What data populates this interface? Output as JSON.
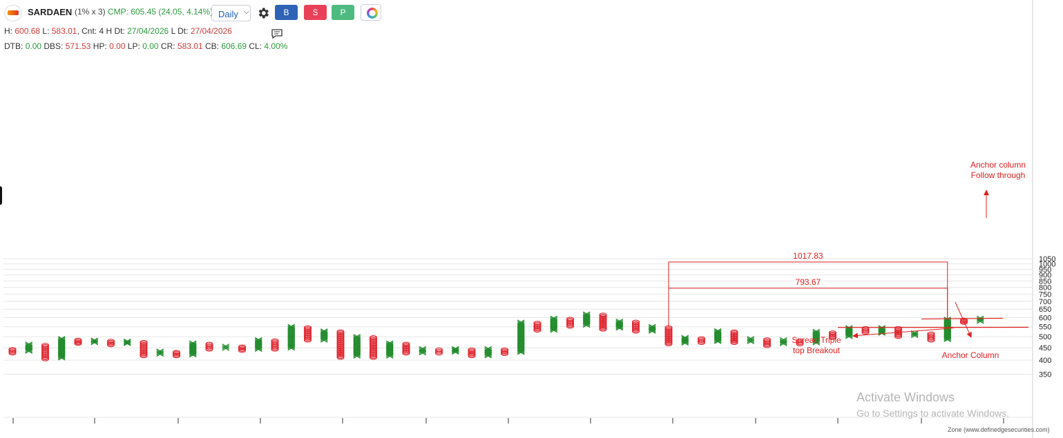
{
  "toolbar": {
    "symbol": "SARDAEN",
    "box_size": "(1% x 3)",
    "cmp": "CMP: 605.45 (24.05, 4.14%)",
    "timeframe": "Daily",
    "buy_label": "B",
    "sell_label": "S",
    "p_label": "P"
  },
  "info": {
    "h_label": "H:",
    "h_value": "600.68",
    "l_label": "L:",
    "l_value": "583.01",
    "cnt": ", Cnt: 4 H Dt:",
    "h_date": "27/04/2026",
    "l_dt_label": "L Dt:",
    "l_date": "27/04/2026",
    "dtb_label": "DTB:",
    "dtb_value": "0.00",
    "dbs_label": "DBS:",
    "dbs_value": "571.53",
    "hp_label": "HP:",
    "hp_value": "0.00",
    "lp_label": "LP:",
    "lp_value": "0.00",
    "cr_label": "CR:",
    "cr_value": "583.01",
    "cb_label": "CB:",
    "cb_value": "606.69",
    "cl_label": "CL:",
    "cl_value": "4.00%"
  },
  "watermark": {
    "line1": "Activate Windows",
    "line2": "Go to Settings to activate Windows."
  },
  "footer": "Zone (www.definedgesecurities.com)",
  "colors": {
    "x_box": "#1f8a2a",
    "o_box": "#e0252f",
    "annotation": "#e02020",
    "grid": "#e6e6e6"
  },
  "chart_data": {
    "type": "point-and-figure",
    "box_size_pct": 1,
    "reversal": 3,
    "y_scale": "log",
    "ylim": [
      340,
      1080
    ],
    "yticks": [
      "350",
      "400",
      "450",
      "500",
      "550",
      "600",
      "650",
      "700",
      "750",
      "800",
      "850",
      "900",
      "950",
      "1000",
      "1050"
    ],
    "columns": [
      {
        "type": "O",
        "high": 444,
        "low": 427
      },
      {
        "type": "X",
        "high": 467,
        "low": 435
      },
      {
        "type": "O",
        "high": 462,
        "low": 404
      },
      {
        "type": "X",
        "high": 492,
        "low": 408
      },
      {
        "type": "O",
        "high": 485,
        "low": 468
      },
      {
        "type": "X",
        "high": 485,
        "low": 472
      },
      {
        "type": "O",
        "high": 480,
        "low": 462
      },
      {
        "type": "X",
        "high": 480,
        "low": 468
      },
      {
        "type": "O",
        "high": 475,
        "low": 416
      },
      {
        "type": "X",
        "high": 437,
        "low": 423
      },
      {
        "type": "O",
        "high": 432,
        "low": 416
      },
      {
        "type": "X",
        "high": 472,
        "low": 420
      },
      {
        "type": "O",
        "high": 467,
        "low": 443
      },
      {
        "type": "X",
        "high": 458,
        "low": 447
      },
      {
        "type": "O",
        "high": 455,
        "low": 438
      },
      {
        "type": "X",
        "high": 487,
        "low": 443
      },
      {
        "type": "O",
        "high": 482,
        "low": 443
      },
      {
        "type": "X",
        "high": 552,
        "low": 448
      },
      {
        "type": "O",
        "high": 546,
        "low": 483
      },
      {
        "type": "X",
        "high": 529,
        "low": 483
      },
      {
        "type": "O",
        "high": 525,
        "low": 410
      },
      {
        "type": "X",
        "high": 502,
        "low": 415
      },
      {
        "type": "O",
        "high": 497,
        "low": 410
      },
      {
        "type": "X",
        "high": 472,
        "low": 415
      },
      {
        "type": "O",
        "high": 467,
        "low": 427
      },
      {
        "type": "X",
        "high": 447,
        "low": 428
      },
      {
        "type": "O",
        "high": 442,
        "low": 427
      },
      {
        "type": "X",
        "high": 447,
        "low": 431
      },
      {
        "type": "O",
        "high": 442,
        "low": 416
      },
      {
        "type": "X",
        "high": 447,
        "low": 416
      },
      {
        "type": "O",
        "high": 442,
        "low": 425
      },
      {
        "type": "X",
        "high": 575,
        "low": 430
      },
      {
        "type": "O",
        "high": 570,
        "low": 531
      },
      {
        "type": "X",
        "high": 598,
        "low": 531
      },
      {
        "type": "O",
        "high": 592,
        "low": 551
      },
      {
        "type": "X",
        "high": 622,
        "low": 557
      },
      {
        "type": "O",
        "high": 616,
        "low": 536
      },
      {
        "type": "X",
        "high": 581,
        "low": 542
      },
      {
        "type": "O",
        "high": 576,
        "low": 526
      },
      {
        "type": "X",
        "high": 552,
        "low": 526
      },
      {
        "type": "O",
        "high": 546,
        "low": 466
      },
      {
        "type": "X",
        "high": 497,
        "low": 470
      },
      {
        "type": "O",
        "high": 492,
        "low": 472
      },
      {
        "type": "X",
        "high": 530,
        "low": 477
      },
      {
        "type": "O",
        "high": 525,
        "low": 472
      },
      {
        "type": "X",
        "high": 492,
        "low": 476
      },
      {
        "type": "O",
        "high": 487,
        "low": 458
      },
      {
        "type": "X",
        "high": 487,
        "low": 467
      },
      {
        "type": "O",
        "high": 482,
        "low": 466
      },
      {
        "type": "X",
        "high": 527,
        "low": 471
      },
      {
        "type": "O",
        "high": 520,
        "low": 495
      },
      {
        "type": "X",
        "high": 546,
        "low": 500
      },
      {
        "type": "O",
        "high": 542,
        "low": 520
      },
      {
        "type": "X",
        "high": 546,
        "low": 516
      },
      {
        "type": "O",
        "high": 542,
        "low": 500
      },
      {
        "type": "X",
        "high": 520,
        "low": 505
      },
      {
        "type": "O",
        "high": 515,
        "low": 483
      },
      {
        "type": "X",
        "high": 592,
        "low": 486
      },
      {
        "type": "O",
        "high": 587,
        "low": 572
      },
      {
        "type": "X",
        "high": 598,
        "low": 578
      }
    ],
    "annotations": [
      {
        "type": "target",
        "label": "1017.83",
        "value": 1017.83
      },
      {
        "type": "target",
        "label": "793.67",
        "value": 793.67
      },
      {
        "type": "label",
        "text": "Anchor column\nFollow through"
      },
      {
        "type": "label",
        "text": "Spread Triple\ntop Breakout"
      },
      {
        "type": "label",
        "text": "Anchor Column"
      }
    ]
  }
}
